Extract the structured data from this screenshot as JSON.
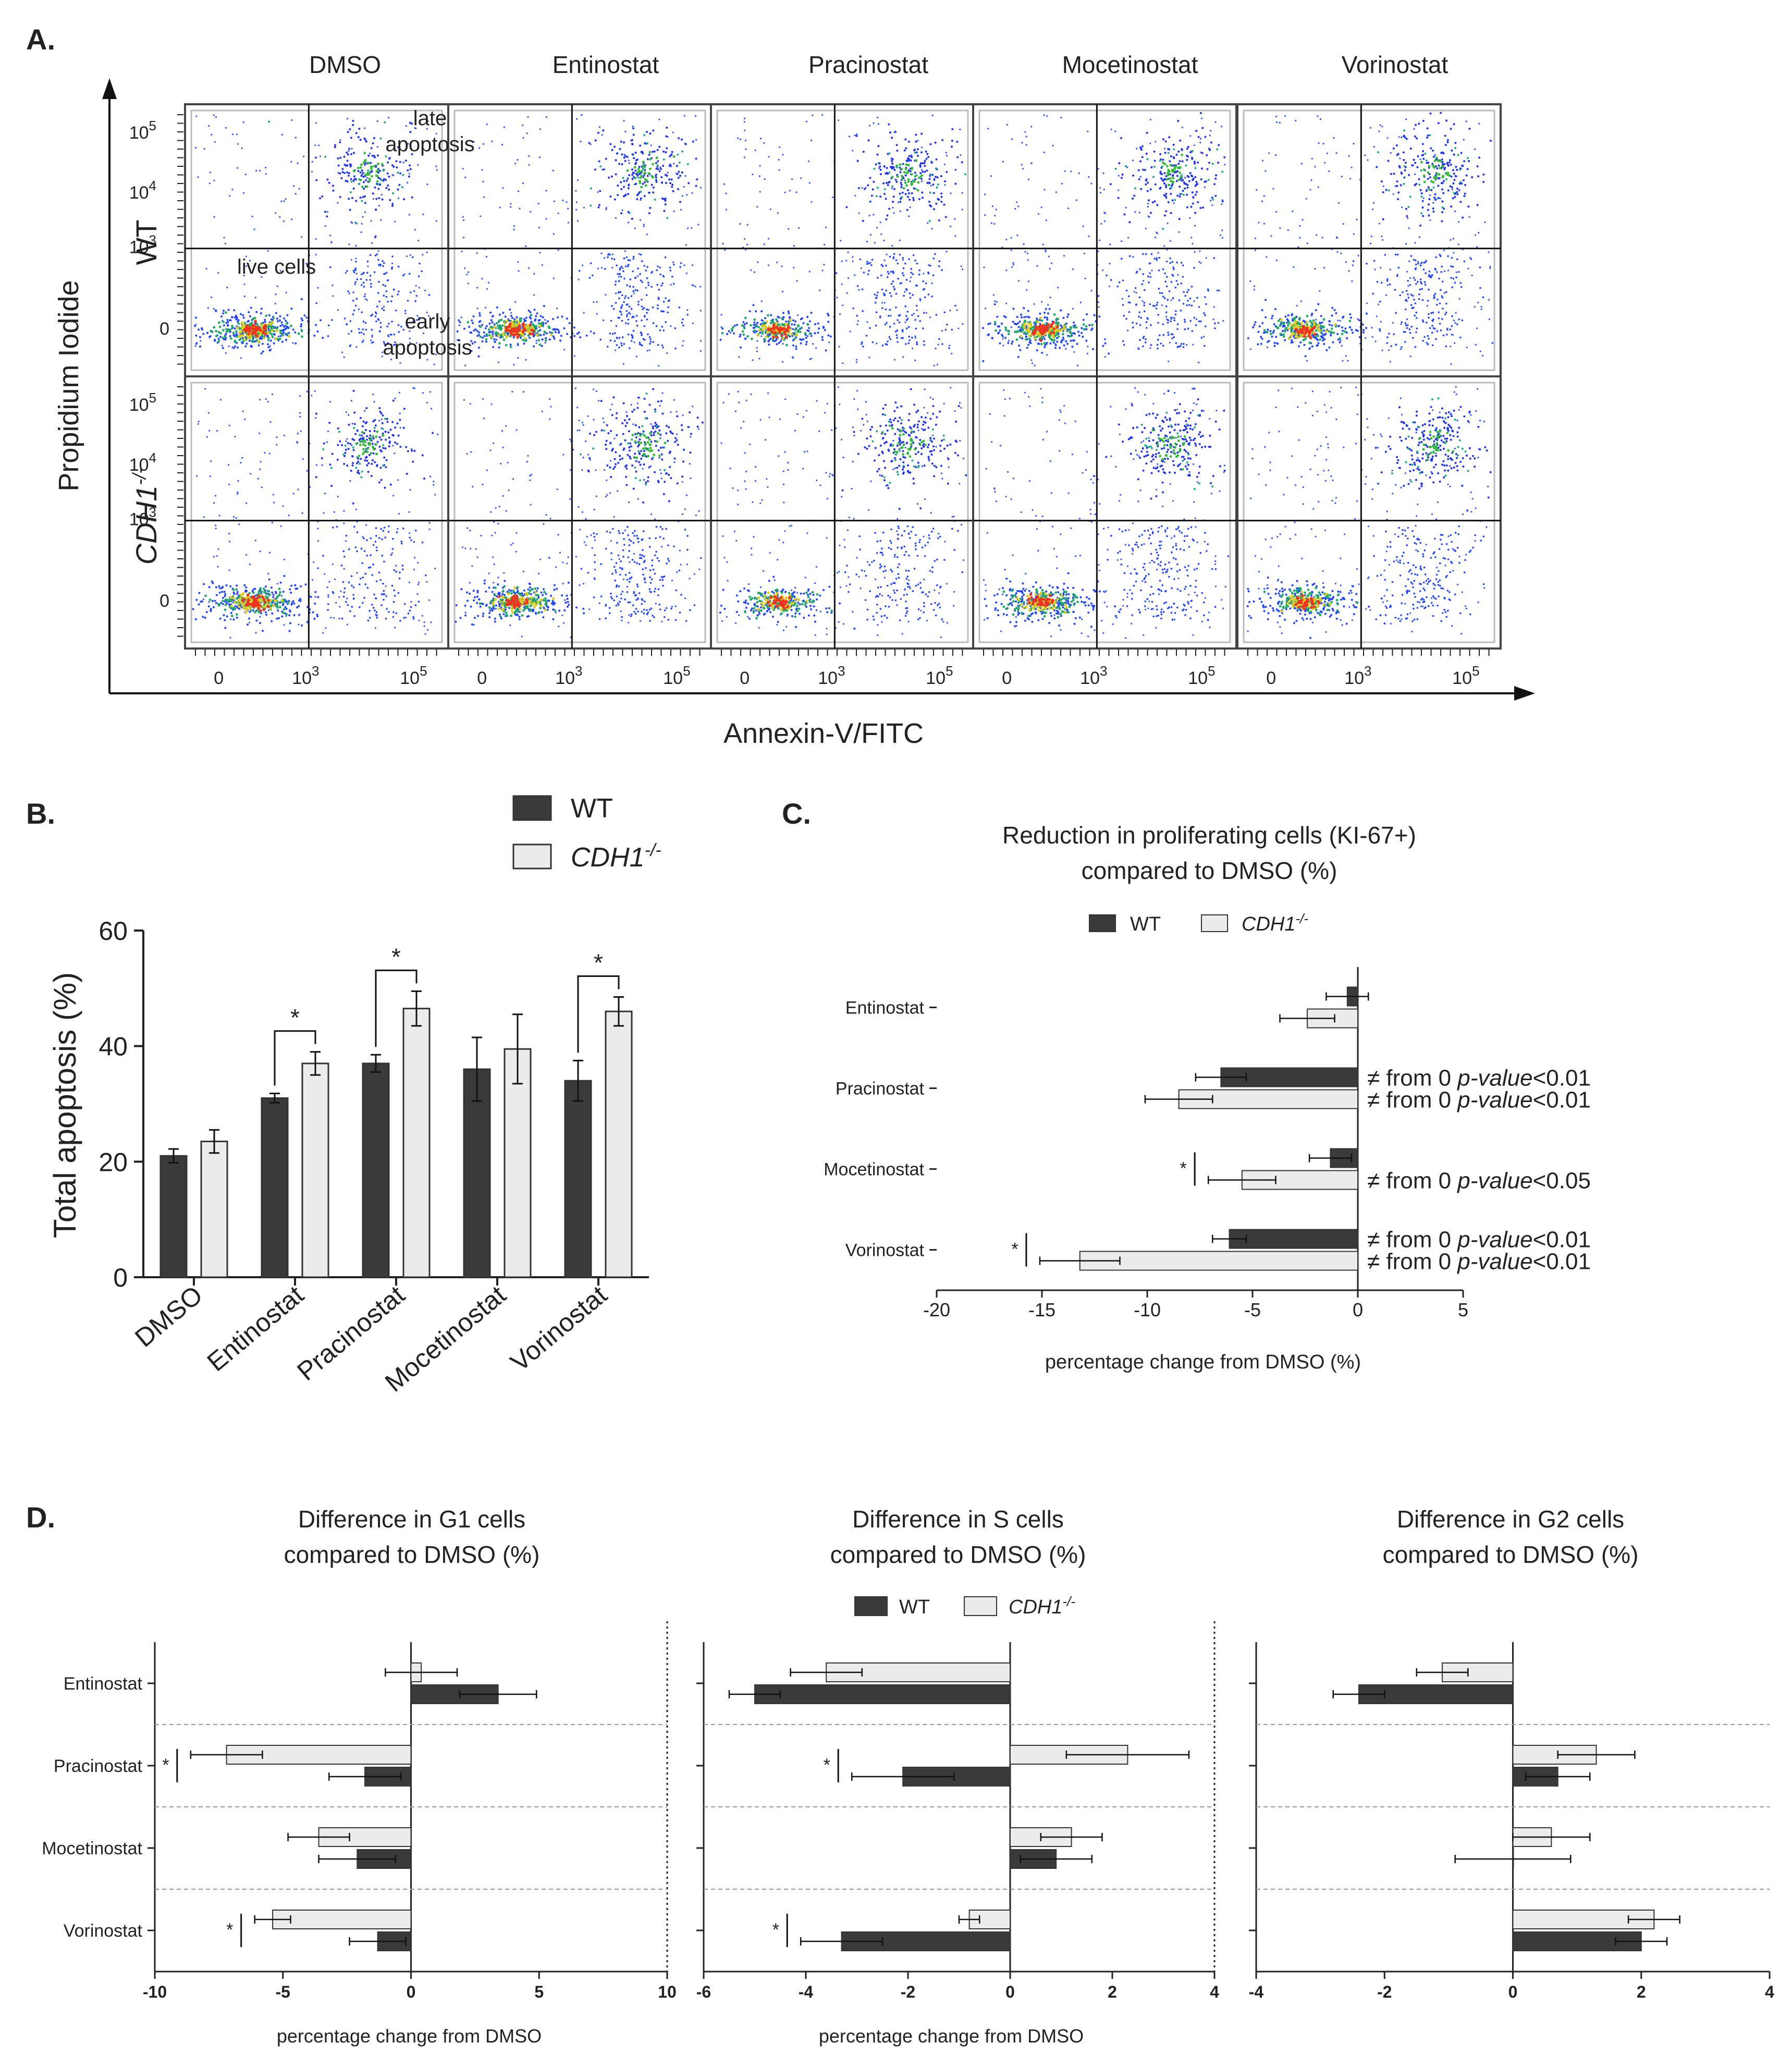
{
  "panel_labels": {
    "a": "A.",
    "b": "B.",
    "c": "C.",
    "d": "D."
  },
  "colors": {
    "wt": "#3a3a3a",
    "cdh1": "#ececec",
    "outline": "#333333",
    "frame": "#666666"
  },
  "panel_a": {
    "conditions": [
      "DMSO",
      "Entinostat",
      "Pracinostat",
      "Mocetinostat",
      "Vorinostat"
    ],
    "rows": [
      "WT",
      "CDH1",
      "-/-"
    ],
    "y_axis_label": "Propidium Iodide",
    "x_axis_label": "Annexin-V/FITC",
    "y_ticks": [
      "10",
      "10",
      "10",
      "0"
    ],
    "y_tick_exps": [
      "5",
      "4",
      "3",
      ""
    ],
    "x_ticks": [
      "0",
      "10",
      "10"
    ],
    "x_tick_exps": [
      "",
      "3",
      "5"
    ],
    "quadrant_labels": {
      "late": [
        "late",
        "apoptosis"
      ],
      "live": "live cells",
      "early": [
        "early",
        "apoptosis"
      ]
    }
  },
  "chart_data": [
    {
      "id": "B",
      "type": "bar",
      "ylabel": "Total apoptosis (%)",
      "ylim": [
        0,
        60
      ],
      "yticks": [
        0,
        20,
        40,
        60
      ],
      "categories": [
        "DMSO",
        "Entinostat",
        "Pracinostat",
        "Mocetinostat",
        "Vorinostat"
      ],
      "series": [
        {
          "name": "WT",
          "values": [
            21,
            31,
            37,
            36,
            34
          ],
          "errors": [
            1.2,
            0.8,
            1.5,
            5.5,
            3.5
          ]
        },
        {
          "name": "CDH1",
          "name_sup": "-/-",
          "values": [
            23.5,
            37,
            46.5,
            39.5,
            46
          ],
          "errors": [
            2,
            2,
            3,
            6,
            2.5
          ]
        }
      ],
      "significance": [
        "",
        "*",
        "*",
        "",
        "*"
      ]
    },
    {
      "id": "C",
      "type": "bar",
      "orientation": "horizontal",
      "title": [
        "Reduction in proliferating cells (KI-67+)",
        "compared to DMSO (%)"
      ],
      "xlabel": "percentage change from DMSO (%)",
      "xlim": [
        -20,
        5
      ],
      "xticks": [
        -20,
        -15,
        -10,
        -5,
        0,
        5
      ],
      "categories": [
        "Entinostat",
        "Pracinostat",
        "Mocetinostat",
        "Vorinostat"
      ],
      "series": [
        {
          "name": "WT",
          "values": [
            -0.5,
            -6.5,
            -1.3,
            -6.1
          ],
          "errors": [
            1.0,
            1.2,
            1.0,
            0.8
          ]
        },
        {
          "name": "CDH1",
          "name_sup": "-/-",
          "values": [
            -2.4,
            -8.5,
            -5.5,
            -13.2
          ],
          "errors": [
            1.3,
            1.6,
            1.6,
            1.9
          ]
        }
      ],
      "significance": [
        "",
        "",
        "*",
        "*"
      ],
      "annotations": [
        {
          "category": 1,
          "series": 0,
          "text": "≠ from 0 ",
          "pval": "p-value",
          "tail": "<0.01"
        },
        {
          "category": 1,
          "series": 1,
          "text": "≠ from 0 ",
          "pval": "p-value",
          "tail": "<0.01"
        },
        {
          "category": 2,
          "series": 1,
          "text": "≠ from 0 ",
          "pval": "p-value",
          "tail": "<0.05"
        },
        {
          "category": 3,
          "series": 0,
          "text": "≠ from 0 ",
          "pval": "p-value",
          "tail": "<0.01"
        },
        {
          "category": 3,
          "series": 1,
          "text": "≠ from 0 ",
          "pval": "p-value",
          "tail": "<0.01"
        }
      ]
    },
    {
      "id": "D-G1",
      "type": "bar",
      "orientation": "horizontal",
      "title": [
        "Difference in G1 cells",
        "compared to DMSO (%)"
      ],
      "xlabel": "percentage change from DMSO",
      "xlim": [
        -10,
        10
      ],
      "xticks": [
        -10,
        -5,
        0,
        5,
        10
      ],
      "categories": [
        "Entinostat",
        "Pracinostat",
        "Mocetinostat",
        "Vorinostat"
      ],
      "series": [
        {
          "name": "CDH1",
          "values": [
            0.4,
            -7.2,
            -3.6,
            -5.4
          ],
          "errors": [
            1.4,
            1.4,
            1.2,
            0.7
          ]
        },
        {
          "name": "WT",
          "values": [
            3.4,
            -1.8,
            -2.1,
            -1.3
          ],
          "errors": [
            1.5,
            1.4,
            1.5,
            1.1
          ]
        }
      ],
      "significance": [
        "",
        "*",
        "",
        "*"
      ]
    },
    {
      "id": "D-S",
      "type": "bar",
      "orientation": "horizontal",
      "title": [
        "Difference in S cells",
        "compared to DMSO (%)"
      ],
      "xlabel": "percentage change from DMSO",
      "xlim": [
        -6,
        4
      ],
      "xticks": [
        -6,
        -4,
        -2,
        0,
        2,
        4
      ],
      "categories": [
        "Entinostat",
        "Pracinostat",
        "Mocetinostat",
        "Vorinostat"
      ],
      "series": [
        {
          "name": "CDH1",
          "values": [
            -3.6,
            2.3,
            1.2,
            -0.8
          ],
          "errors": [
            0.7,
            1.2,
            0.6,
            0.2
          ]
        },
        {
          "name": "WT",
          "values": [
            -5.0,
            -2.1,
            0.9,
            -3.3
          ],
          "errors": [
            0.5,
            1.0,
            0.7,
            0.8
          ]
        }
      ],
      "significance": [
        "",
        "*",
        "",
        "*"
      ]
    },
    {
      "id": "D-G2",
      "type": "bar",
      "orientation": "horizontal",
      "title": [
        "Difference in G2 cells",
        "compared to DMSO (%)"
      ],
      "xlim": [
        -4,
        4
      ],
      "xticks": [
        -4,
        -2,
        0,
        2,
        4
      ],
      "categories": [
        "Entinostat",
        "Pracinostat",
        "Mocetinostat",
        "Vorinostat"
      ],
      "series": [
        {
          "name": "CDH1",
          "values": [
            -1.1,
            1.3,
            0.6,
            2.2
          ],
          "errors": [
            0.4,
            0.6,
            0.6,
            0.4
          ]
        },
        {
          "name": "WT",
          "values": [
            -2.4,
            0.7,
            0.0,
            2.0
          ],
          "errors": [
            0.4,
            0.5,
            0.9,
            0.4
          ]
        }
      ],
      "significance": [
        "",
        "",
        "",
        ""
      ]
    }
  ],
  "legend_b": {
    "wt": "WT",
    "cdh1": "CDH1",
    "cdh1_sup": "-/-"
  },
  "legend_c": {
    "wt": "WT",
    "cdh1": "CDH1",
    "cdh1_sup": "-/-"
  },
  "legend_d": {
    "wt": "WT",
    "cdh1": "CDH1",
    "cdh1_sup": "-/-"
  }
}
